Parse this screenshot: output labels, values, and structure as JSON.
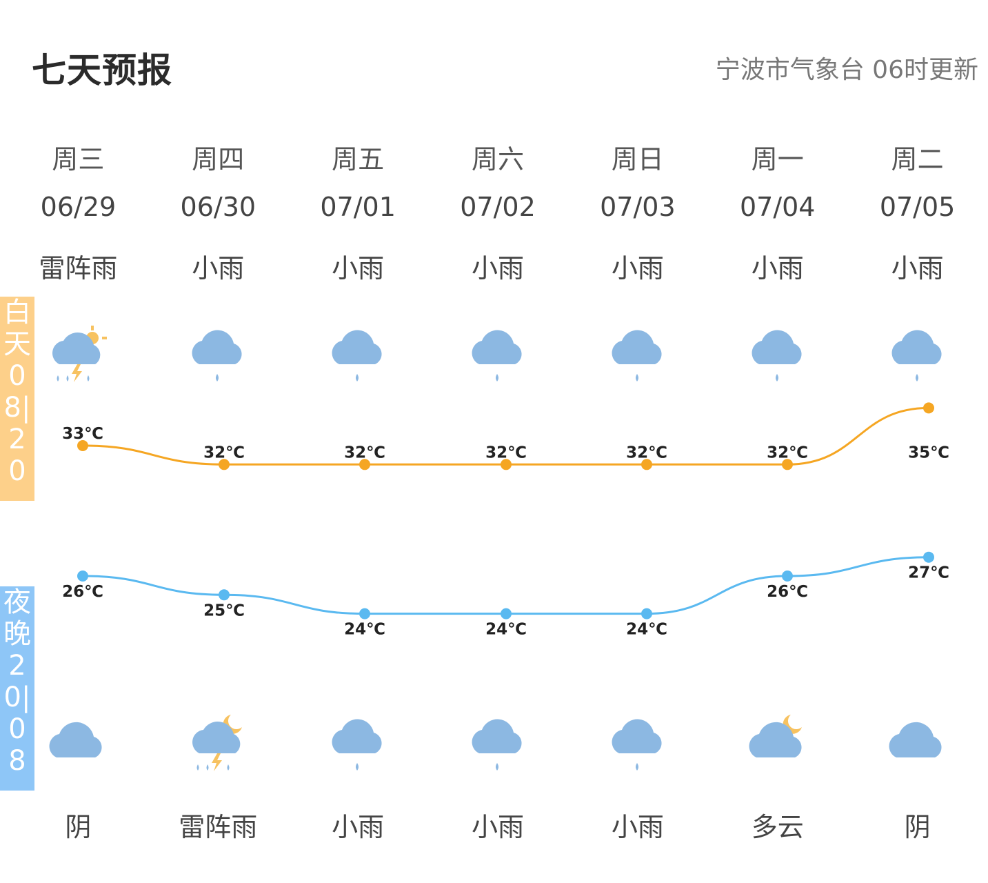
{
  "header": {
    "title": "七天预报",
    "source": "宁波市气象台 06时更新"
  },
  "side": {
    "day_label": "白天08|20",
    "night_label": "夜晚20|08",
    "day_color": "#fdd08a",
    "night_color": "#8ec6f7"
  },
  "days": [
    {
      "weekday": "周三",
      "date": "06/29",
      "day_weather": "雷阵雨",
      "night_weather": "阴",
      "day_icon": "thunder-shower-sun-icon",
      "night_icon": "overcast-cloud-icon"
    },
    {
      "weekday": "周四",
      "date": "06/30",
      "day_weather": "小雨",
      "night_weather": "雷阵雨",
      "day_icon": "light-rain-icon",
      "night_icon": "thunder-shower-moon-icon"
    },
    {
      "weekday": "周五",
      "date": "07/01",
      "day_weather": "小雨",
      "night_weather": "小雨",
      "day_icon": "light-rain-icon",
      "night_icon": "light-rain-icon"
    },
    {
      "weekday": "周六",
      "date": "07/02",
      "day_weather": "小雨",
      "night_weather": "小雨",
      "day_icon": "light-rain-icon",
      "night_icon": "light-rain-icon"
    },
    {
      "weekday": "周日",
      "date": "07/03",
      "day_weather": "小雨",
      "night_weather": "小雨",
      "day_icon": "light-rain-icon",
      "night_icon": "light-rain-icon"
    },
    {
      "weekday": "周一",
      "date": "07/04",
      "day_weather": "小雨",
      "night_weather": "多云",
      "day_icon": "light-rain-icon",
      "night_icon": "cloudy-moon-icon"
    },
    {
      "weekday": "周二",
      "date": "07/05",
      "day_weather": "小雨",
      "night_weather": "阴",
      "day_icon": "light-rain-icon",
      "night_icon": "overcast-cloud-icon"
    }
  ],
  "chart_data": {
    "type": "line",
    "unit": "℃",
    "series": [
      {
        "values": [
          33,
          32,
          32,
          32,
          32,
          32,
          35
        ],
        "color": "#f5a623"
      },
      {
        "values": [
          26,
          25,
          24,
          24,
          24,
          26,
          27
        ],
        "color": "#5ab9f0"
      }
    ],
    "labels_high": [
      "33℃",
      "32℃",
      "32℃",
      "32℃",
      "32℃",
      "32℃",
      "35℃"
    ],
    "labels_low": [
      "26℃",
      "25℃",
      "24℃",
      "24℃",
      "24℃",
      "26℃",
      "27℃"
    ]
  }
}
